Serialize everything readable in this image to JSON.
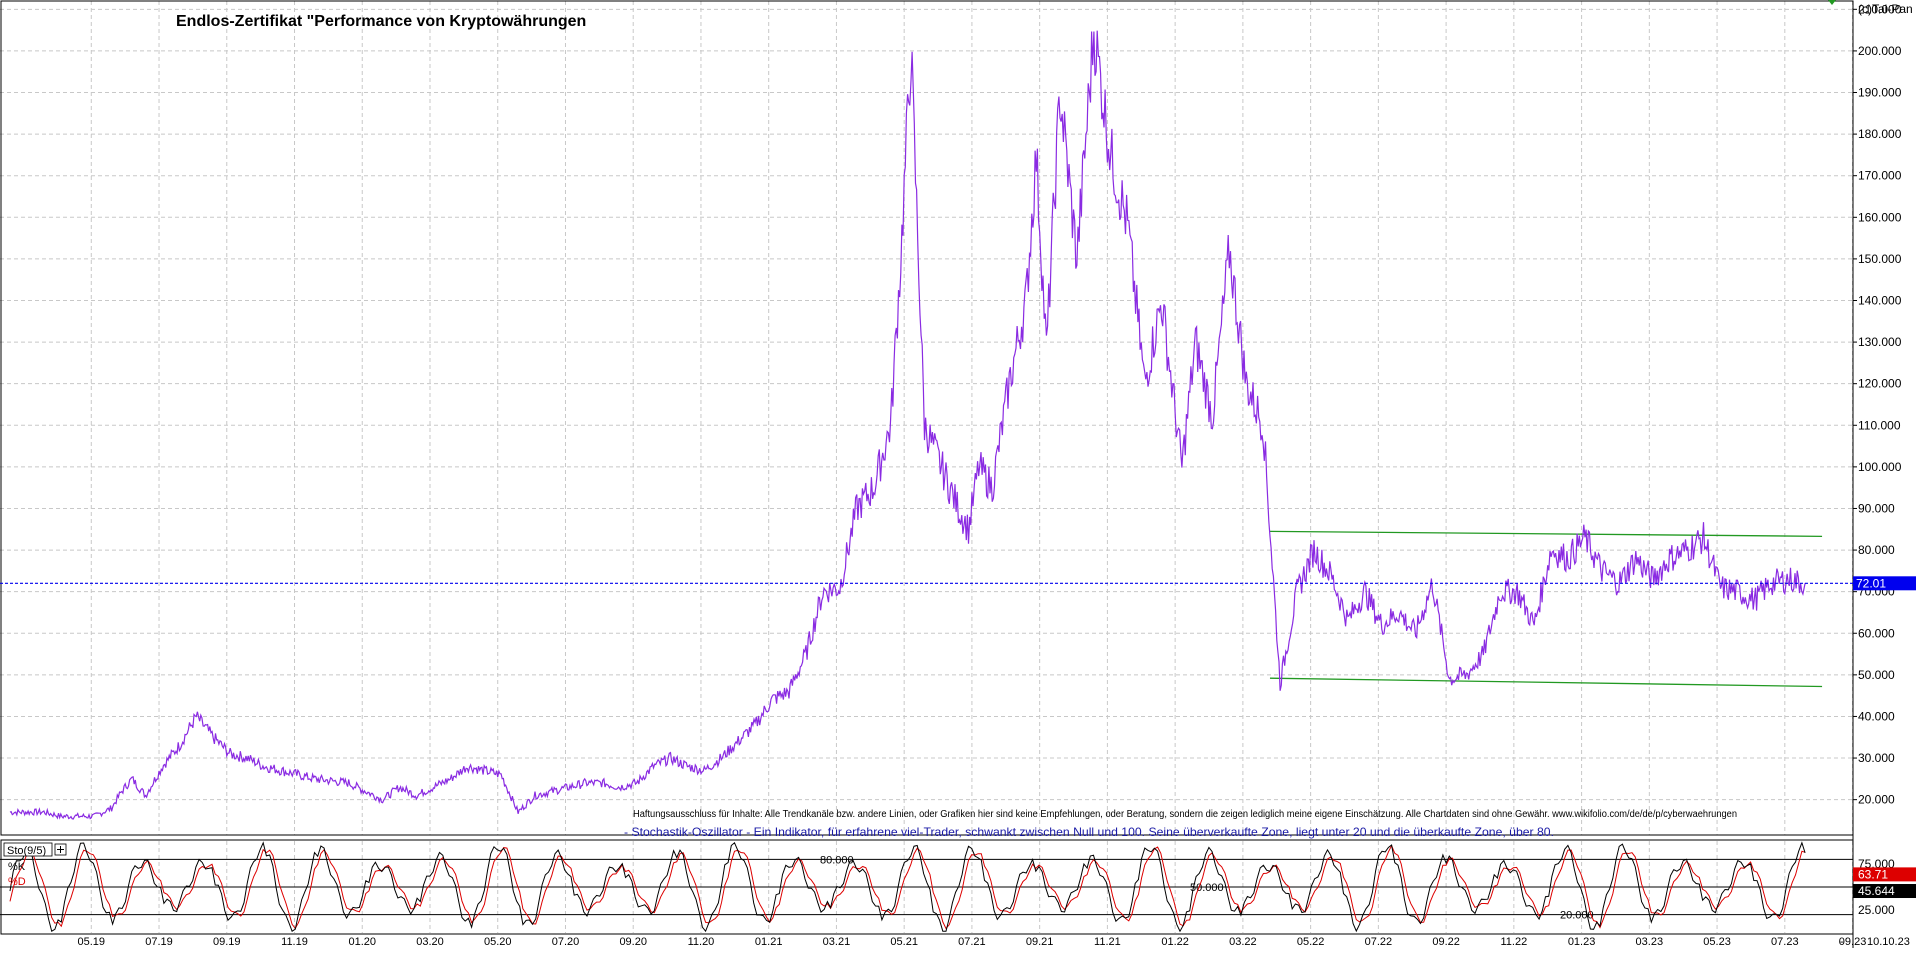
{
  "copyright": "(c)Tai-Pan",
  "date_label": "10.10.23",
  "disclaimer": "Haftungsausschluss für Inhalte: Alle Trendkanäle bzw. andere Linien, oder Grafiken hier sind keine Empfehlungen, oder Beratung, sondern die zeigen lediglich meine eigene Einschätzung. Alle Chartdaten sind ohne Gewähr.  www.wikifolio.com/de/de/p/cyberwaehrungen",
  "oscillator_note": "- Stochastik-Oszillator - Ein Indikator, für erfahrene viel-Trader, schwankt zwischen Null und 100. Seine überverkaufte Zone, liegt unter 20 und die überkaufte Zone, über 80.",
  "colors": {
    "price": "#8a2be2",
    "channel": "#229922",
    "k_line": "#000000",
    "d_line": "#dd0000",
    "current": "#0000ee",
    "grid": "#c8c8c8"
  },
  "chart_data": [
    {
      "type": "line",
      "title": "Endlos-Zertifikat \"Performance von Kryptowährungen",
      "x_ticks": [
        "05.19",
        "07.19",
        "09.19",
        "11.19",
        "01.20",
        "03.20",
        "05.20",
        "07.20",
        "09.20",
        "11.20",
        "01.21",
        "03.21",
        "05.21",
        "07.21",
        "09.21",
        "11.21",
        "01.22",
        "03.22",
        "05.22",
        "07.22",
        "09.22",
        "11.22",
        "01.23",
        "03.23",
        "05.23",
        "07.23",
        "09.23"
      ],
      "y_ticks": [
        "20.000",
        "30.000",
        "40.000",
        "50.000",
        "60.000",
        "70.000",
        "80.000",
        "90.000",
        "100.000",
        "110.000",
        "120.000",
        "130.000",
        "140.000",
        "150.000",
        "160.000",
        "170.000",
        "180.000",
        "190.000",
        "200.000",
        "210.000"
      ],
      "y_range": [
        11.5,
        212
      ],
      "x_range": [
        0,
        54
      ],
      "grid": true,
      "last_value_label": "72.01",
      "series": [
        {
          "x": [
            0,
            1,
            1.5,
            2,
            2.5,
            3,
            3.3,
            3.6,
            4,
            4.5,
            5,
            5.5,
            6,
            6.5,
            7,
            7.5,
            8,
            9,
            10,
            10.5,
            11,
            11.5,
            12,
            13,
            13.5,
            14,
            14.5,
            15,
            15.5,
            16,
            16.5,
            17,
            17.5,
            18,
            18.5,
            19,
            19.5,
            20,
            20.5,
            21,
            21.5,
            22,
            22.5,
            23,
            23.5,
            24,
            24.5,
            25,
            25.5,
            26,
            26.3,
            26.6,
            27,
            27.5,
            28,
            28.3,
            28.6,
            29,
            29.5,
            30,
            30.3,
            30.6,
            31,
            31.5,
            32,
            32.5,
            33,
            33.5,
            34,
            34.3,
            34.6,
            35,
            35.5,
            36,
            36.5,
            37,
            37.5,
            38,
            38.5,
            39,
            39.5,
            40,
            40.5,
            41,
            41.5,
            42,
            42.5,
            43,
            43.5,
            44,
            44.5,
            45,
            45.5,
            46,
            46.5,
            47,
            47.5,
            48,
            48.5,
            49,
            49.5,
            50,
            50.5,
            51,
            51.5,
            52,
            52.5,
            53
          ],
          "y": [
            17,
            17,
            16,
            16,
            16,
            18,
            22,
            25,
            21,
            28,
            33,
            40,
            35,
            31,
            30,
            28,
            27,
            25,
            24,
            22,
            20,
            23,
            21,
            25,
            28,
            27,
            26,
            17,
            21,
            22,
            23,
            24,
            24,
            23,
            24,
            28,
            30,
            28,
            27,
            30,
            34,
            38,
            44,
            46,
            55,
            70,
            71,
            90,
            95,
            110,
            150,
            200,
            110,
            100,
            90,
            85,
            100,
            95,
            120,
            140,
            175,
            128,
            190,
            150,
            205,
            175,
            158,
            120,
            140,
            120,
            100,
            130,
            112,
            152,
            120,
            110,
            48,
            70,
            80,
            74,
            63,
            70,
            62,
            65,
            60,
            72,
            49,
            50,
            55,
            70,
            70,
            62,
            80,
            78,
            83,
            75,
            72,
            78,
            73,
            78,
            80,
            83,
            71,
            70,
            68,
            72,
            73,
            72
          ]
        }
      ],
      "trendlines": [
        {
          "from": [
            37.2,
            84.5
          ],
          "to": [
            53.5,
            83.3
          ]
        },
        {
          "from": [
            37.2,
            49.2
          ],
          "to": [
            53.5,
            47.2
          ]
        }
      ]
    },
    {
      "type": "line",
      "title": "Sto(9/5)",
      "legend": [
        "%K",
        "%D"
      ],
      "y_range": [
        0,
        100
      ],
      "levels": [
        {
          "value": 80,
          "label": "80.000"
        },
        {
          "value": 50,
          "label": "50.000"
        },
        {
          "value": 20,
          "label": "20.000"
        }
      ],
      "y_ticks": [
        "25.000",
        "75.000"
      ],
      "last_values": {
        "k": "45.644",
        "d": "63.71"
      },
      "series": [
        {
          "name": "%K",
          "x_range": [
            0,
            53
          ],
          "cycle_days": 1.2,
          "values_sample": [
            20,
            85,
            90,
            30,
            10,
            60,
            95,
            80,
            25,
            15,
            70,
            92,
            55,
            12,
            40,
            88
          ]
        },
        {
          "name": "%D",
          "x_range": [
            0,
            53
          ],
          "cycle_days": 1.2,
          "values_sample": [
            25,
            75,
            88,
            45,
            15,
            50,
            88,
            85,
            35,
            18,
            60,
            88,
            65,
            18,
            35,
            80
          ]
        }
      ]
    }
  ]
}
